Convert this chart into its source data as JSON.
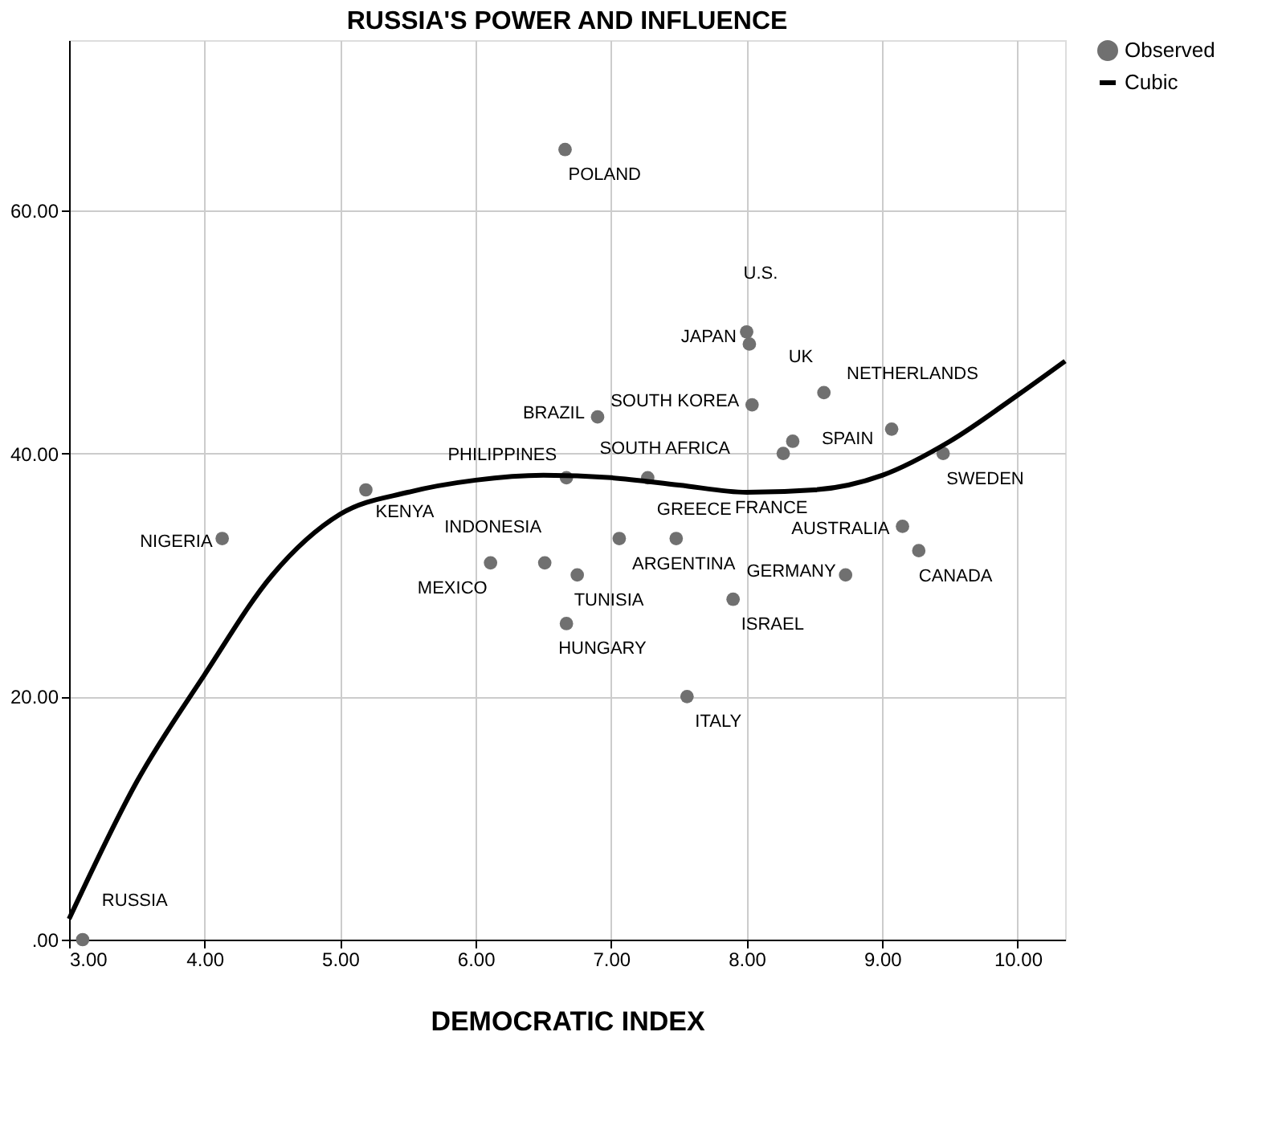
{
  "chart_data": {
    "type": "scatter",
    "title": "RUSSIA'S POWER AND INFLUENCE",
    "xlabel": "DEMOCRATIC INDEX",
    "xlim": [
      3.0,
      10.35
    ],
    "ylim": [
      0,
      74
    ],
    "xticks": [
      {
        "value": 3,
        "label": "3.00"
      },
      {
        "value": 4,
        "label": "4.00"
      },
      {
        "value": 5,
        "label": "5.00"
      },
      {
        "value": 6,
        "label": "6.00"
      },
      {
        "value": 7,
        "label": "7.00"
      },
      {
        "value": 8,
        "label": "8.00"
      },
      {
        "value": 9,
        "label": "9.00"
      },
      {
        "value": 10,
        "label": "10.00"
      }
    ],
    "yticks": [
      {
        "value": 0,
        "label": ".00"
      },
      {
        "value": 20,
        "label": "20.00"
      },
      {
        "value": 40,
        "label": "40.00"
      },
      {
        "value": 60,
        "label": "60.00"
      }
    ],
    "grid": true,
    "legend": "top right",
    "series": [
      {
        "name": "Observed",
        "type": "scatter",
        "color": "#707070",
        "marker": "circle",
        "x": [
          3.1,
          4.13,
          5.19,
          6.67,
          6.11,
          6.51,
          6.66,
          6.9,
          8.04,
          8.02,
          8.0,
          8.57,
          9.07,
          8.34,
          8.27,
          7.27,
          9.45,
          7.48,
          7.06,
          9.15,
          9.27,
          8.73,
          6.75,
          7.9,
          6.67,
          7.56
        ],
        "values": [
          0,
          33,
          37,
          38,
          31,
          31,
          65,
          43,
          44,
          49,
          50,
          45,
          42,
          41,
          40,
          38,
          40,
          33,
          33,
          34,
          32,
          30,
          30,
          28,
          26,
          20
        ]
      },
      {
        "name": "Cubic",
        "type": "line",
        "color": "#000000",
        "line_style": "solid",
        "x": [
          3.0,
          3.5,
          4.0,
          4.5,
          5.0,
          5.5,
          6.0,
          6.5,
          7.0,
          7.5,
          8.0,
          8.5,
          9.0,
          9.5,
          10.0,
          10.35
        ],
        "values": [
          1.7,
          13,
          21.8,
          30,
          35,
          36.8,
          37.8,
          38.2,
          38,
          37.4,
          36.8,
          37,
          38.2,
          41,
          44.8,
          47.6
        ]
      }
    ],
    "annotations": [
      {
        "text": "RUSSIA",
        "x": 3.1,
        "y": 0
      },
      {
        "text": "NIGERIA",
        "x": 4.13,
        "y": 33
      },
      {
        "text": "KENYA",
        "x": 5.19,
        "y": 37
      },
      {
        "text": "PHILIPPINES",
        "x": 6.67,
        "y": 38
      },
      {
        "text": "MEXICO",
        "x": 6.11,
        "y": 31
      },
      {
        "text": "INDONESIA",
        "x": 6.51,
        "y": 31
      },
      {
        "text": "POLAND",
        "x": 6.66,
        "y": 65
      },
      {
        "text": "BRAZIL",
        "x": 6.9,
        "y": 43
      },
      {
        "text": "SOUTH KOREA",
        "x": 8.04,
        "y": 44
      },
      {
        "text": "JAPAN",
        "x": 8.02,
        "y": 49
      },
      {
        "text": "U.S.",
        "x": 8.0,
        "y": 50
      },
      {
        "text": "UK",
        "x": 8.57,
        "y": 45
      },
      {
        "text": "NETHERLANDS",
        "x": 9.07,
        "y": 42
      },
      {
        "text": "SPAIN",
        "x": 8.34,
        "y": 41
      },
      {
        "text": "FRANCE",
        "x": 8.27,
        "y": 40
      },
      {
        "text": "SOUTH AFRICA",
        "x": 7.27,
        "y": 38
      },
      {
        "text": "SWEDEN",
        "x": 9.45,
        "y": 40
      },
      {
        "text": "GREECE",
        "x": 7.48,
        "y": 33
      },
      {
        "text": "ARGENTINA",
        "x": 7.06,
        "y": 33
      },
      {
        "text": "AUSTRALIA",
        "x": 9.15,
        "y": 34
      },
      {
        "text": "CANADA",
        "x": 9.27,
        "y": 32
      },
      {
        "text": "GERMANY",
        "x": 8.73,
        "y": 30
      },
      {
        "text": "TUNISIA",
        "x": 6.75,
        "y": 30
      },
      {
        "text": "ISRAEL",
        "x": 7.9,
        "y": 28
      },
      {
        "text": "HUNGARY",
        "x": 6.67,
        "y": 26
      },
      {
        "text": "ITALY",
        "x": 7.56,
        "y": 20
      }
    ]
  }
}
